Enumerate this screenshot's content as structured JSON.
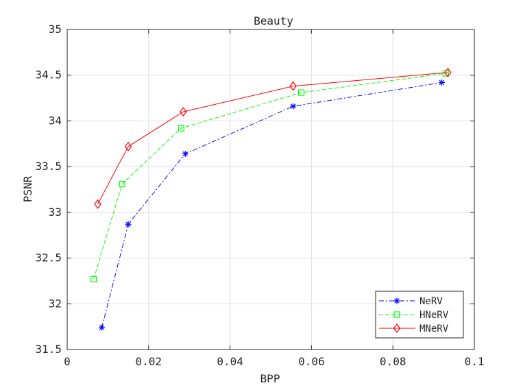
{
  "chart_data": {
    "type": "line",
    "title": "Beauty",
    "xlabel": "BPP",
    "ylabel": "PSNR",
    "xlim": [
      0,
      0.1
    ],
    "ylim": [
      31.5,
      35
    ],
    "xticks": [
      0,
      0.02,
      0.04,
      0.06,
      0.08,
      0.1
    ],
    "xtick_labels": [
      "0",
      "0.02",
      "0.04",
      "0.06",
      "0.08",
      "0.1"
    ],
    "yticks": [
      31.5,
      32,
      32.5,
      33,
      33.5,
      34,
      34.5,
      35
    ],
    "ytick_labels": [
      "31.5",
      "32",
      "32.5",
      "33",
      "33.5",
      "34",
      "34.5",
      "35"
    ],
    "grid": true,
    "legend_position": "bottom-right",
    "series": [
      {
        "name": "NeRV",
        "color": "#0000ff",
        "line_style": "dash-dot",
        "marker": "asterisk",
        "x": [
          0.0085,
          0.015,
          0.029,
          0.0555,
          0.092
        ],
        "y": [
          31.74,
          32.87,
          33.64,
          34.16,
          34.42
        ]
      },
      {
        "name": "HNeRV",
        "color": "#00ff00",
        "line_style": "dashed",
        "marker": "square",
        "x": [
          0.0065,
          0.0135,
          0.028,
          0.0575,
          0.093
        ],
        "y": [
          32.27,
          33.31,
          33.92,
          34.31,
          34.52
        ]
      },
      {
        "name": "MNeRV",
        "color": "#ff0000",
        "line_style": "solid",
        "marker": "diamond",
        "x": [
          0.0075,
          0.015,
          0.0285,
          0.0555,
          0.0935
        ],
        "y": [
          33.09,
          33.72,
          34.1,
          34.38,
          34.53
        ]
      }
    ]
  }
}
